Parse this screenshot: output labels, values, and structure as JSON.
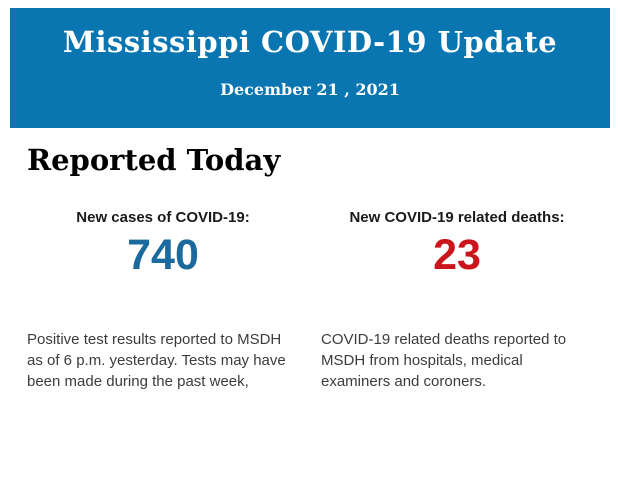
{
  "header": {
    "title": "Mississippi COVID-19 Update",
    "date": "December 21 , 2021",
    "background_color": "#0a76b1",
    "text_color": "#ffffff"
  },
  "main": {
    "section_title": "Reported Today",
    "stats": [
      {
        "label": "New cases of COVID-19:",
        "value": "740",
        "value_color": "#1b6a9e",
        "description": "Positive test results reported to MSDH as of 6 p.m. yesterday. Tests may have been made during the past week,"
      },
      {
        "label": "New COVID-19 related deaths:",
        "value": "23",
        "value_color": "#c9151b",
        "description": "COVID-19 related deaths reported to MSDH from hospitals, medical examiners and coroners."
      }
    ]
  }
}
